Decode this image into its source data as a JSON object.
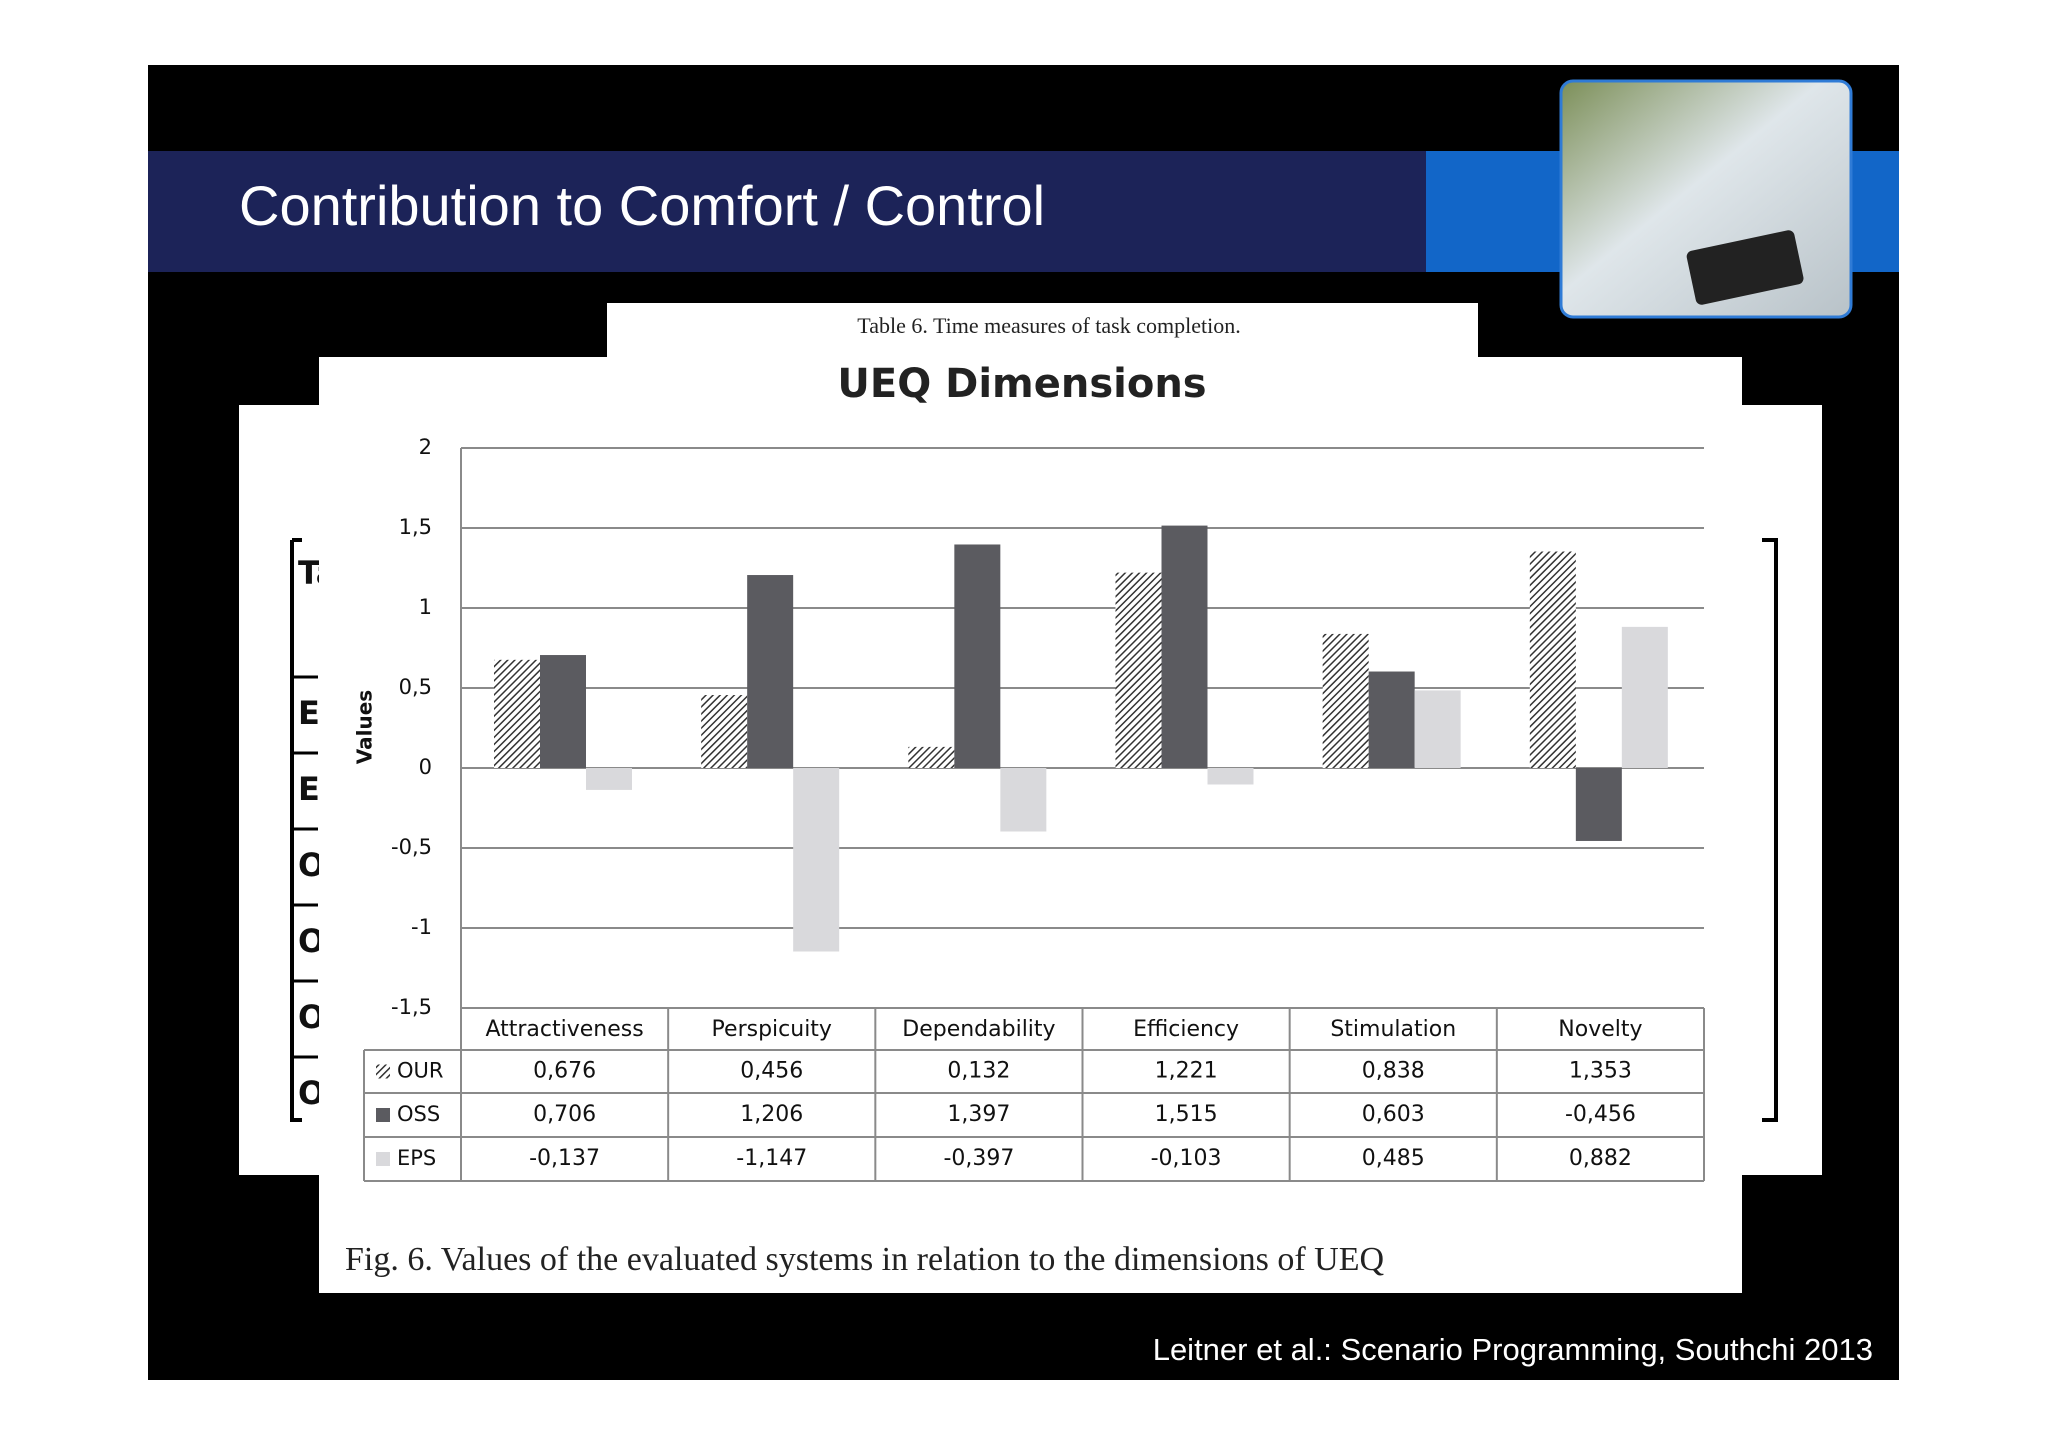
{
  "slide": {
    "title": "Contribution to Comfort / Control",
    "footer": "Leitner et al.: Scenario Programming,  Southchi 2013"
  },
  "table_caption": "Table 6. Time measures of task completion.",
  "hidden_table": {
    "cells": [
      "Ta",
      "E",
      "E",
      "O",
      "O",
      "O",
      "O"
    ]
  },
  "figure_caption": "Fig. 6. Values of the evaluated systems in relation to the dimensions of UEQ",
  "chart_data": {
    "type": "bar",
    "title": "UEQ Dimensions",
    "y_label": "Values",
    "categories": [
      "Attractiveness",
      "Perspicuity",
      "Dependability",
      "Efficiency",
      "Stimulation",
      "Novelty"
    ],
    "series": [
      {
        "name": "OUR",
        "color": "#3a3a3a",
        "pattern": "hatch",
        "values": [
          0.676,
          0.456,
          0.132,
          1.221,
          0.838,
          1.353
        ],
        "value_labels": [
          "0,676",
          "0,456",
          "0,132",
          "1,221",
          "0,838",
          "1,353"
        ]
      },
      {
        "name": "OSS",
        "color": "#5b5b60",
        "values": [
          0.706,
          1.206,
          1.397,
          1.515,
          0.603,
          -0.456
        ],
        "value_labels": [
          "0,706",
          "1,206",
          "1,397",
          "1,515",
          "0,603",
          "-0,456"
        ]
      },
      {
        "name": "EPS",
        "color": "#d9d9dc",
        "values": [
          -0.137,
          -1.147,
          -0.397,
          -0.103,
          0.485,
          0.882
        ],
        "value_labels": [
          "-0,137",
          "-1,147",
          "-0,397",
          "-0,103",
          "0,485",
          "0,882"
        ]
      }
    ],
    "ylim": [
      -1.5,
      2
    ],
    "yticks": [
      {
        "value": -1.5,
        "label": "-1,5"
      },
      -1,
      {
        "value": -0.5,
        "label": "-0,5"
      },
      0,
      {
        "value": 0.5,
        "label": "0,5"
      },
      1,
      {
        "value": 1.5,
        "label": "1,5"
      },
      2
    ],
    "grid": true
  }
}
